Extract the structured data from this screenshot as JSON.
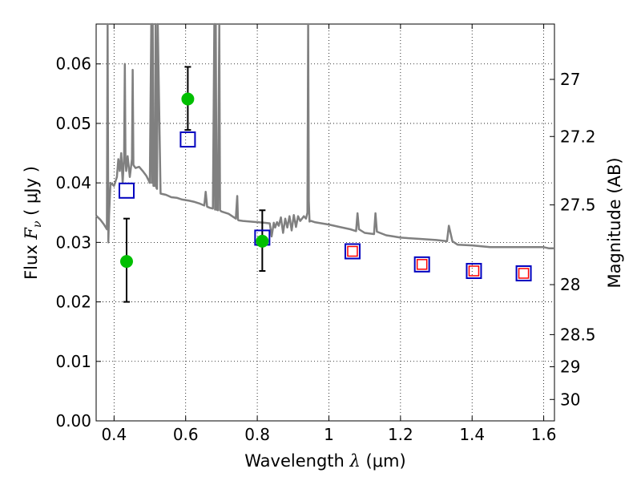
{
  "chart_data": {
    "type": "scatter",
    "xlabel_prefix": "Wavelength  ",
    "xlabel_symbol": "λ",
    "xlabel_unit": " (μm)",
    "ylabel_prefix": "Flux  ",
    "ylabel_symbol": "F",
    "ylabel_subscript": "ν",
    "ylabel_unit": "  ( μJy )",
    "y2label": "Magnitude (AB)",
    "xlim": [
      0.35,
      1.63
    ],
    "ylim": [
      0.0,
      0.0667
    ],
    "grid": true,
    "x_ticks": [
      0.4,
      0.6,
      0.8,
      1.0,
      1.2,
      1.4,
      1.6
    ],
    "x_tick_labels": [
      "0.4",
      "0.6",
      "0.8",
      "1",
      "1.2",
      "1.4",
      "1.6"
    ],
    "y_ticks": [
      0.0,
      0.01,
      0.02,
      0.03,
      0.04,
      0.05,
      0.06
    ],
    "y_tick_labels": [
      "0.00",
      "0.01",
      "0.02",
      "0.03",
      "0.04",
      "0.05",
      "0.06"
    ],
    "y2_ticks": [
      {
        "flux": 0.0574,
        "label": "27"
      },
      {
        "flux": 0.0478,
        "label": "27.2"
      },
      {
        "flux": 0.0363,
        "label": "27.5"
      },
      {
        "flux": 0.0229,
        "label": "28"
      },
      {
        "flux": 0.0145,
        "label": "28.5"
      },
      {
        "flux": 0.0091,
        "label": "29"
      },
      {
        "flux": 0.0036,
        "label": "30"
      }
    ],
    "colors": {
      "spectrum": "#808080",
      "observed": "#00bf00",
      "model_box": "#0000bf",
      "model_inner": "#ff0000",
      "errorbar": "#000000"
    },
    "series": [
      {
        "name": "observed",
        "x": [
          0.435,
          0.606,
          0.814
        ],
        "y": [
          0.0268,
          0.0541,
          0.0302
        ],
        "yerr_low": [
          0.02,
          0.0489,
          0.0252
        ],
        "yerr_high": [
          0.034,
          0.0595,
          0.0354
        ]
      },
      {
        "name": "model_blue_squares",
        "x": [
          0.435,
          0.606,
          0.814,
          1.066,
          1.26,
          1.405,
          1.544
        ],
        "y": [
          0.0387,
          0.0473,
          0.0308,
          0.0285,
          0.0263,
          0.0252,
          0.0248
        ]
      },
      {
        "name": "model_red_squares",
        "x": [
          1.066,
          1.26,
          1.405,
          1.544
        ],
        "y": [
          0.0285,
          0.0263,
          0.0252,
          0.0248
        ]
      },
      {
        "name": "template_spectrum",
        "x": [
          0.35,
          0.362,
          0.372,
          0.38,
          0.382,
          0.384,
          0.386,
          0.39,
          0.4,
          0.408,
          0.412,
          0.416,
          0.42,
          0.424,
          0.428,
          0.43,
          0.432,
          0.434,
          0.438,
          0.444,
          0.45,
          0.452,
          0.454,
          0.46,
          0.47,
          0.48,
          0.49,
          0.5,
          0.504,
          0.506,
          0.508,
          0.51,
          0.514,
          0.516,
          0.518,
          0.52,
          0.522,
          0.53,
          0.545,
          0.56,
          0.575,
          0.59,
          0.61,
          0.625,
          0.64,
          0.652,
          0.656,
          0.66,
          0.668,
          0.676,
          0.68,
          0.682,
          0.684,
          0.686,
          0.69,
          0.694,
          0.696,
          0.7,
          0.72,
          0.74,
          0.744,
          0.746,
          0.748,
          0.76,
          0.78,
          0.8,
          0.82,
          0.835,
          0.84,
          0.846,
          0.85,
          0.855,
          0.86,
          0.866,
          0.872,
          0.878,
          0.884,
          0.89,
          0.896,
          0.902,
          0.908,
          0.914,
          0.92,
          0.93,
          0.936,
          0.94,
          0.942,
          0.944,
          0.946,
          0.95,
          0.96,
          0.98,
          1.0,
          1.03,
          1.06,
          1.076,
          1.08,
          1.084,
          1.1,
          1.126,
          1.13,
          1.134,
          1.16,
          1.18,
          1.2,
          1.25,
          1.3,
          1.33,
          1.335,
          1.345,
          1.36,
          1.4,
          1.45,
          1.5,
          1.55,
          1.6,
          1.615,
          1.63
        ],
        "y": [
          0.0345,
          0.0338,
          0.033,
          0.0322,
          0.0667,
          0.03,
          0.0345,
          0.04,
          0.0395,
          0.041,
          0.044,
          0.042,
          0.045,
          0.04,
          0.0445,
          0.06,
          0.044,
          0.042,
          0.0445,
          0.041,
          0.044,
          0.059,
          0.043,
          0.0425,
          0.0427,
          0.042,
          0.0412,
          0.04,
          0.0667,
          0.04,
          0.0667,
          0.0395,
          0.0395,
          0.0667,
          0.0392,
          0.039,
          0.0667,
          0.0382,
          0.038,
          0.0376,
          0.0375,
          0.0372,
          0.037,
          0.0368,
          0.0365,
          0.0362,
          0.0385,
          0.036,
          0.0358,
          0.0357,
          0.0667,
          0.0355,
          0.0667,
          0.0355,
          0.0354,
          0.0667,
          0.0354,
          0.0352,
          0.0348,
          0.034,
          0.0378,
          0.0338,
          0.0337,
          0.0336,
          0.0335,
          0.0334,
          0.0333,
          0.0332,
          0.031,
          0.0333,
          0.0325,
          0.0334,
          0.0328,
          0.0342,
          0.0316,
          0.034,
          0.0325,
          0.0344,
          0.032,
          0.0346,
          0.0326,
          0.0344,
          0.0336,
          0.0344,
          0.034,
          0.035,
          0.0667,
          0.037,
          0.0335,
          0.0336,
          0.0334,
          0.0332,
          0.033,
          0.0326,
          0.0322,
          0.0319,
          0.0349,
          0.0322,
          0.0316,
          0.0314,
          0.0349,
          0.0318,
          0.0312,
          0.031,
          0.0308,
          0.0306,
          0.0304,
          0.0302,
          0.0328,
          0.0302,
          0.0296,
          0.0295,
          0.0292,
          0.0292,
          0.0292,
          0.0292,
          0.029,
          0.029
        ]
      }
    ]
  }
}
